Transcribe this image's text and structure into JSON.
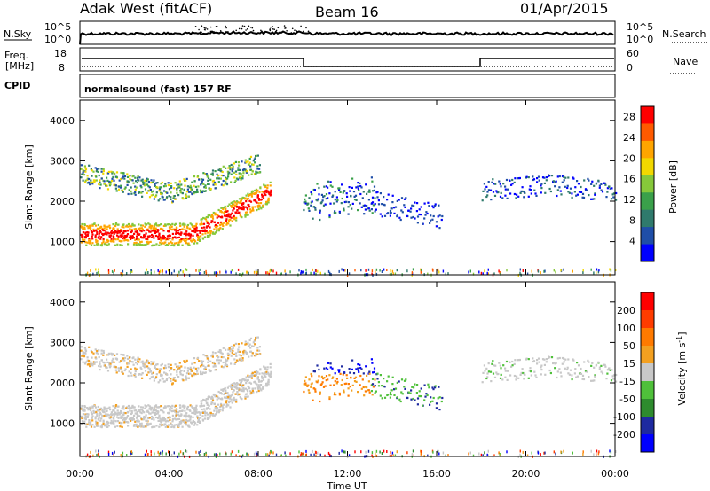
{
  "header": {
    "station": "Adak West (fitACF)",
    "beam": "Beam 16",
    "date": "01/Apr/2015"
  },
  "strips": {
    "nsky_label": "N.Sky",
    "nsearch_label": "N.Search",
    "nsky_ticks": [
      "10^5",
      "10^0"
    ],
    "nsearch_ticks": [
      "10^5",
      "10^0"
    ],
    "freq_label_1": "Freq.",
    "freq_label_2": "[MHz]",
    "freq_ticks": [
      "18",
      "8"
    ],
    "nave_label": "Nave",
    "nave_ticks": [
      "60",
      "0"
    ],
    "cpid_label": "CPID",
    "cpid_text": "normalsound (fast) 157 RF"
  },
  "chart_data": [
    {
      "type": "heatmap",
      "title": "Power",
      "xlabel": "Time UT",
      "ylabel": "Slant Range [km]",
      "x_ticks": [
        "00:00",
        "04:00",
        "08:00",
        "12:00",
        "16:00",
        "20:00",
        "00:00"
      ],
      "x_range_hours": [
        0,
        24
      ],
      "y_ticks": [
        1000,
        2000,
        3000,
        4000
      ],
      "ylim": [
        180,
        4500
      ],
      "colorbar_label": "Power [dB]",
      "colorbar_ticks": [
        4,
        8,
        12,
        16,
        20,
        24,
        28
      ],
      "colorbar_range": [
        0,
        30
      ],
      "colorbar_colors": [
        "#0000ff",
        "#1f4ea8",
        "#2f7a6c",
        "#3aa04a",
        "#86c83a",
        "#f2d800",
        "#ffa500",
        "#ff5a00",
        "#ff0000"
      ]
    },
    {
      "type": "heatmap",
      "title": "Velocity",
      "xlabel": "Time UT",
      "ylabel": "Slant Range [km]",
      "x_ticks": [
        "00:00",
        "04:00",
        "08:00",
        "12:00",
        "16:00",
        "20:00",
        "00:00"
      ],
      "x_range_hours": [
        0,
        24
      ],
      "y_ticks": [
        1000,
        2000,
        3000,
        4000
      ],
      "ylim": [
        180,
        4500
      ],
      "colorbar_label": "Velocity [m s^-1]",
      "colorbar_ticks": [
        200,
        100,
        50,
        15,
        -15,
        -50,
        -100,
        -200
      ],
      "colorbar_colors": [
        "#0000ff",
        "#1e2aa0",
        "#2e8b2e",
        "#4fc03a",
        "#c8c8c8",
        "#f3a020",
        "#ff7a00",
        "#ff3c00",
        "#ff0000"
      ]
    }
  ]
}
